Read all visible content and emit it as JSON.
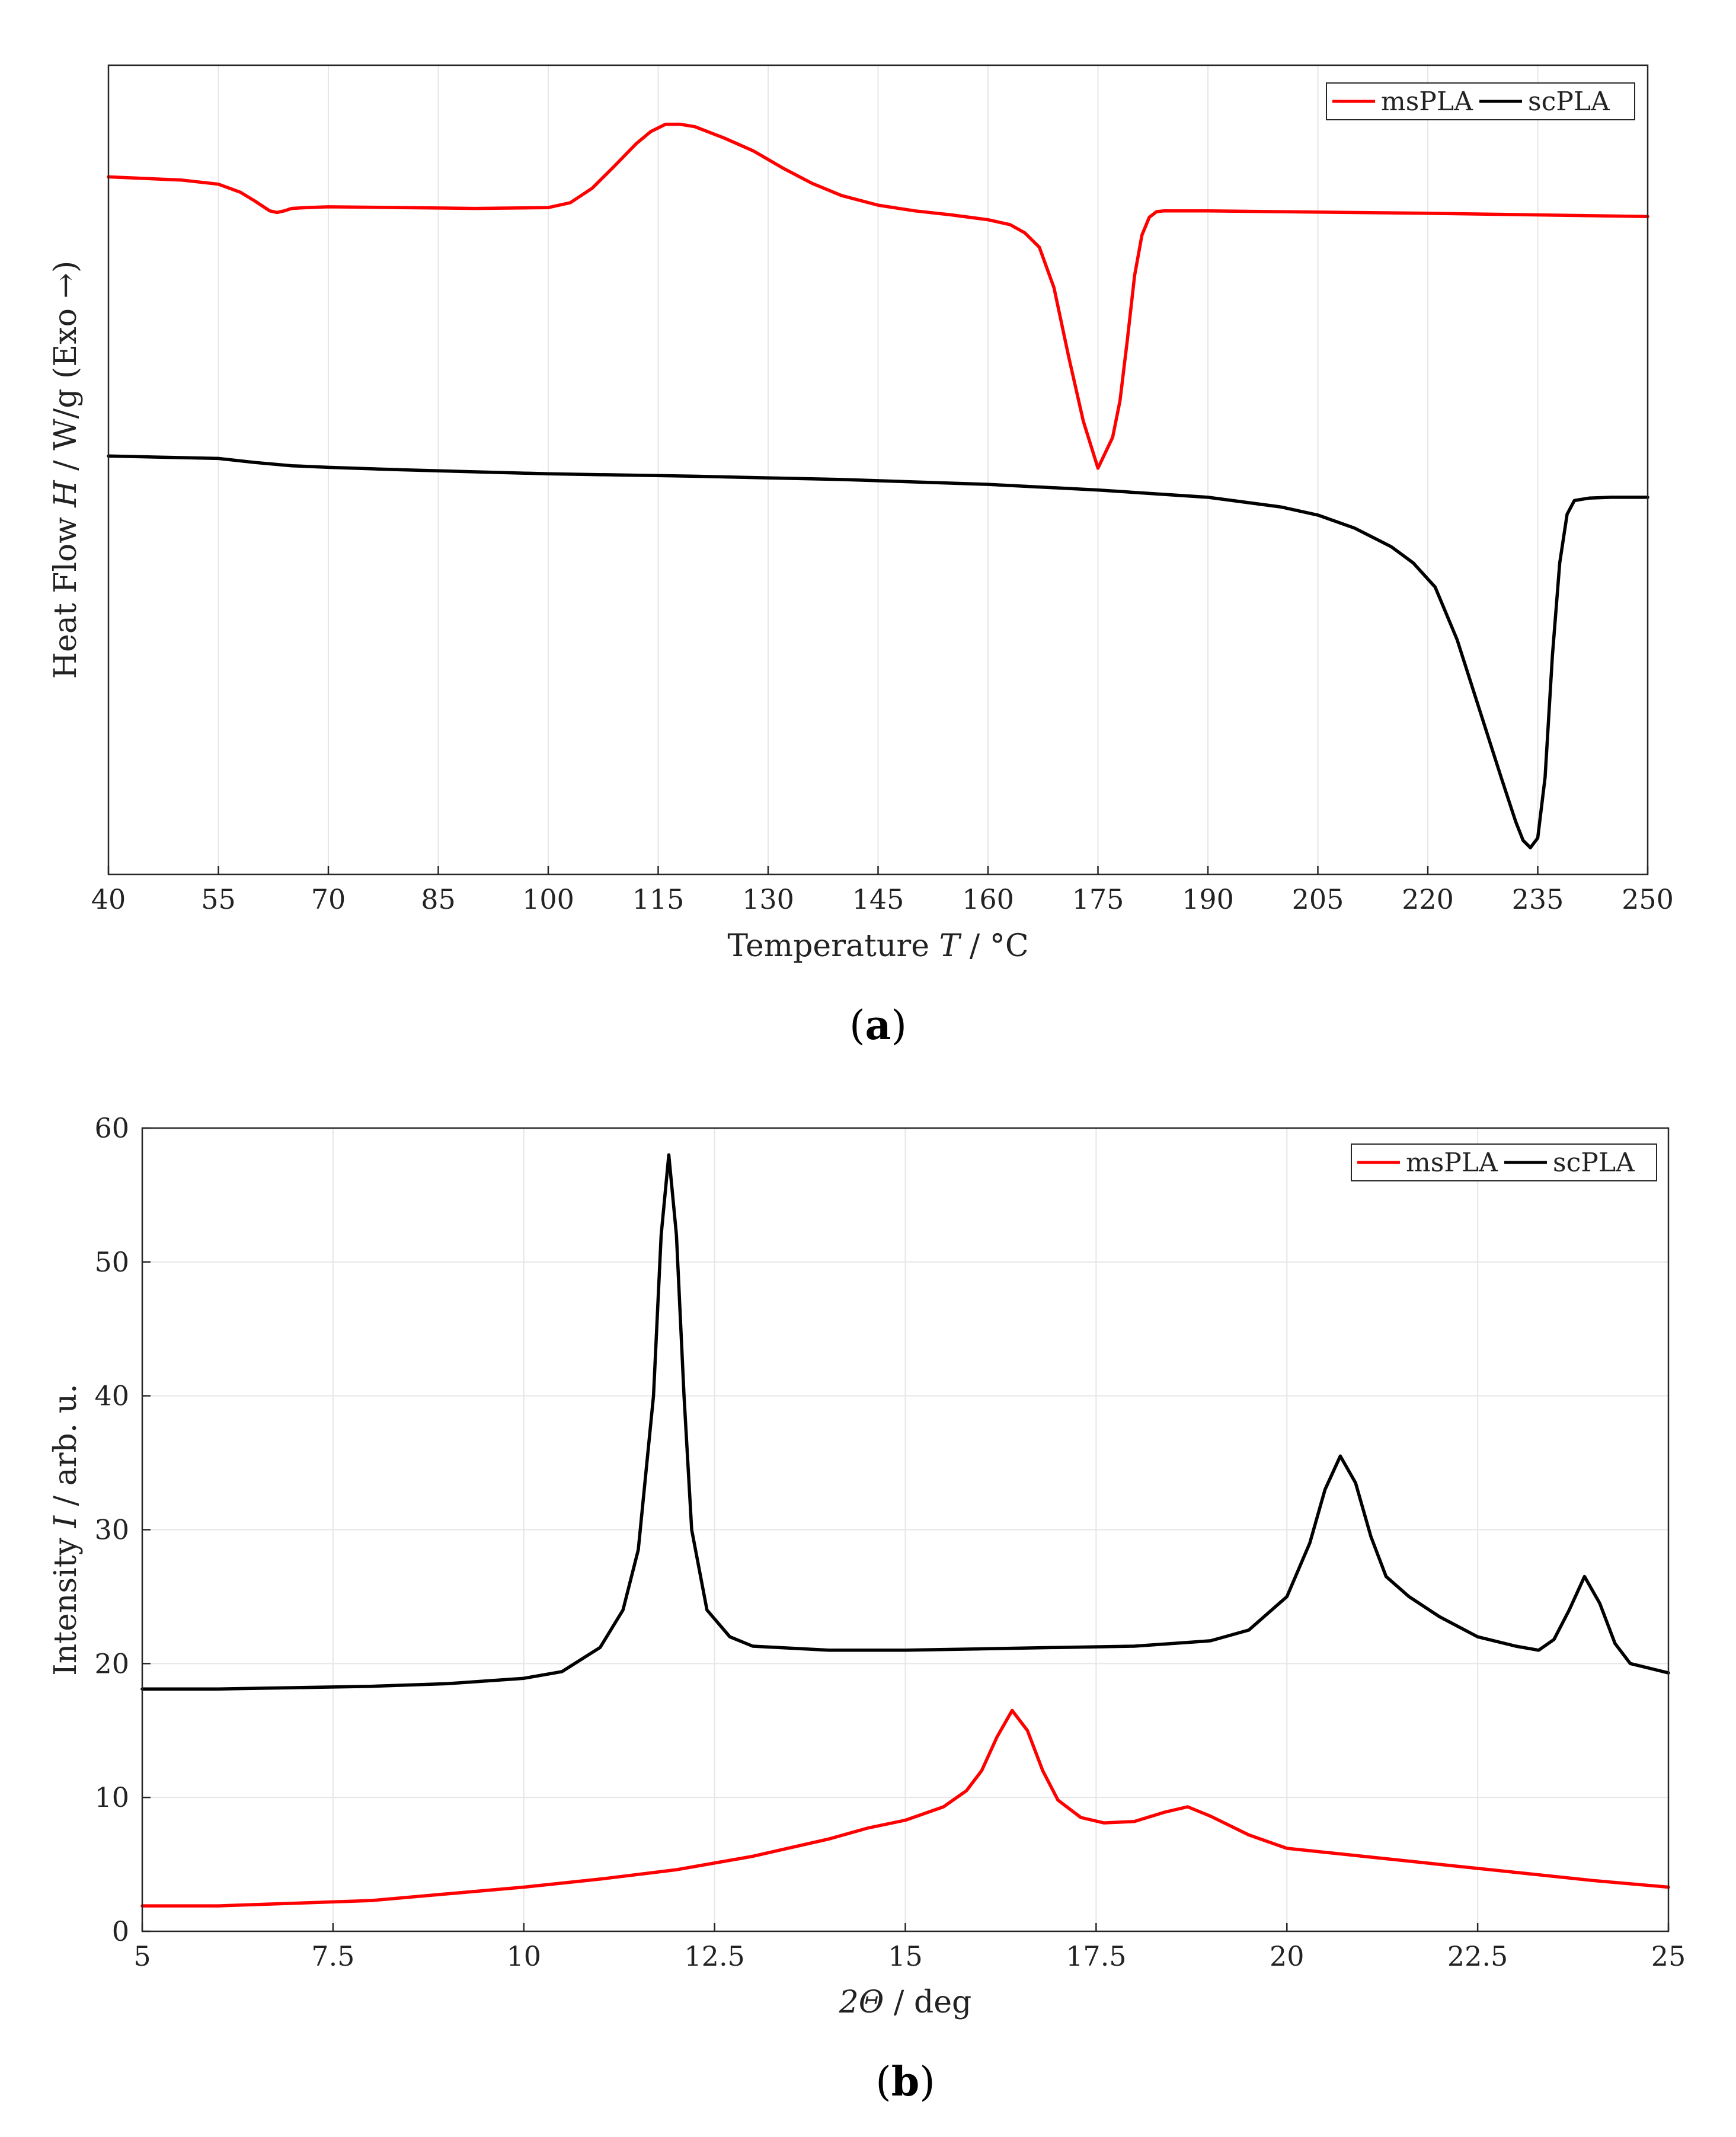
{
  "chart_data": [
    {
      "id": "a",
      "type": "line",
      "panel_label": "a",
      "xlabel_prefix": "Temperature ",
      "xlabel_var": "T",
      "xlabel_suffix": " / °C",
      "ylabel_prefix": "Heat Flow ",
      "ylabel_var": "H",
      "ylabel_suffix": " / W/g (Exo →)",
      "xlim": [
        40,
        250
      ],
      "ylim": [
        0,
        100
      ],
      "xticks": [
        "40",
        "55",
        "70",
        "85",
        "100",
        "115",
        "130",
        "145",
        "160",
        "175",
        "190",
        "205",
        "220",
        "235",
        "250"
      ],
      "legend": [
        "msPLA",
        "scPLA"
      ],
      "legend_position": "top-right",
      "series": [
        {
          "name": "msPLA",
          "color": "#ff0000",
          "x": [
            40,
            50,
            55,
            58,
            60,
            62,
            63,
            64,
            65,
            67,
            70,
            80,
            90,
            100,
            103,
            106,
            109,
            112,
            114,
            116,
            118,
            120,
            124,
            128,
            132,
            136,
            140,
            145,
            150,
            155,
            160,
            163,
            165,
            167,
            169,
            171,
            173,
            175,
            177,
            178,
            179,
            180,
            181,
            182,
            183,
            184,
            186,
            190,
            200,
            220,
            250
          ],
          "y": [
            86.2,
            85.8,
            85.3,
            84.3,
            83.2,
            82.0,
            81.8,
            82.0,
            82.3,
            82.4,
            82.5,
            82.4,
            82.3,
            82.4,
            83.0,
            84.8,
            87.5,
            90.3,
            91.8,
            92.7,
            92.7,
            92.4,
            91.0,
            89.4,
            87.3,
            85.4,
            83.9,
            82.7,
            82.0,
            81.5,
            80.9,
            80.3,
            79.3,
            77.5,
            72.5,
            64.0,
            56.0,
            50.2,
            54.0,
            58.5,
            66.0,
            74.0,
            79.0,
            81.2,
            81.9,
            82.0,
            82.0,
            82.0,
            81.9,
            81.7,
            81.3
          ]
        },
        {
          "name": "scPLA",
          "color": "#000000",
          "x": [
            40,
            55,
            60,
            65,
            70,
            80,
            100,
            120,
            140,
            160,
            175,
            190,
            200,
            205,
            210,
            215,
            218,
            221,
            224,
            227,
            230,
            232,
            233,
            234,
            235,
            236,
            237,
            238,
            239,
            240,
            242,
            245,
            250
          ],
          "y": [
            51.7,
            51.4,
            50.9,
            50.5,
            50.3,
            50.0,
            49.5,
            49.2,
            48.8,
            48.2,
            47.5,
            46.6,
            45.4,
            44.4,
            42.8,
            40.5,
            38.5,
            35.5,
            29.0,
            20.5,
            12.0,
            6.5,
            4.2,
            3.3,
            4.5,
            12.0,
            27.0,
            38.5,
            44.5,
            46.2,
            46.5,
            46.6,
            46.6
          ]
        }
      ]
    },
    {
      "id": "b",
      "type": "line",
      "panel_label": "b",
      "xlabel_var": "2Θ",
      "xlabel_suffix": " / deg",
      "ylabel_prefix": "Intensity ",
      "ylabel_var": "I",
      "ylabel_suffix": " / arb. u.",
      "xlim": [
        5,
        25
      ],
      "ylim": [
        0,
        60
      ],
      "xticks": [
        "5",
        "7.5",
        "10",
        "12.5",
        "15",
        "17.5",
        "20",
        "22.5",
        "25"
      ],
      "yticks": [
        "0",
        "10",
        "20",
        "30",
        "40",
        "50",
        "60"
      ],
      "legend": [
        "msPLA",
        "scPLA"
      ],
      "legend_position": "top-right",
      "series": [
        {
          "name": "msPLA",
          "color": "#ff0000",
          "x": [
            5,
            6,
            7,
            8,
            9,
            10,
            11,
            12,
            13,
            14,
            14.5,
            15,
            15.5,
            15.8,
            16.0,
            16.2,
            16.4,
            16.6,
            16.8,
            17.0,
            17.3,
            17.6,
            18.0,
            18.4,
            18.7,
            19.0,
            19.5,
            20,
            21,
            22,
            23,
            24,
            25
          ],
          "y": [
            1.9,
            1.9,
            2.1,
            2.3,
            2.8,
            3.3,
            3.9,
            4.6,
            5.6,
            6.9,
            7.7,
            8.3,
            9.3,
            10.5,
            12.0,
            14.5,
            16.5,
            15.0,
            12.0,
            9.8,
            8.5,
            8.1,
            8.2,
            8.9,
            9.3,
            8.6,
            7.2,
            6.2,
            5.6,
            5.0,
            4.4,
            3.8,
            3.3
          ]
        },
        {
          "name": "scPLA",
          "color": "#000000",
          "x": [
            5,
            6,
            7,
            8,
            9,
            10,
            10.5,
            11,
            11.3,
            11.5,
            11.7,
            11.8,
            11.9,
            12.0,
            12.1,
            12.2,
            12.4,
            12.7,
            13.0,
            14,
            15,
            16,
            17,
            18,
            19,
            19.5,
            20.0,
            20.3,
            20.5,
            20.7,
            20.9,
            21.1,
            21.3,
            21.6,
            22.0,
            22.5,
            23.0,
            23.3,
            23.5,
            23.7,
            23.9,
            24.1,
            24.3,
            24.5,
            25
          ],
          "y": [
            18.1,
            18.1,
            18.2,
            18.3,
            18.5,
            18.9,
            19.4,
            21.2,
            24.0,
            28.5,
            40.0,
            52.0,
            58.0,
            52.0,
            40.0,
            30.0,
            24.0,
            22.0,
            21.3,
            21.0,
            21.0,
            21.1,
            21.2,
            21.3,
            21.7,
            22.5,
            25.0,
            29.0,
            33.0,
            35.5,
            33.5,
            29.5,
            26.5,
            25.0,
            23.5,
            22.0,
            21.3,
            21.0,
            21.8,
            24.0,
            26.5,
            24.5,
            21.5,
            20.0,
            19.3
          ]
        }
      ]
    }
  ]
}
